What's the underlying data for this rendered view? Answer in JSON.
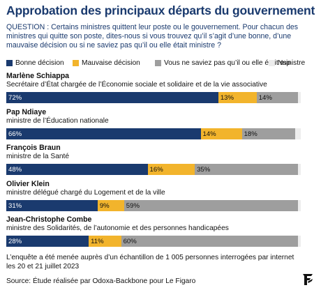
{
  "title": "Approbation des principaux départs du gouvernement",
  "question": "QUESTION : Certains ministres quittent leur poste ou le gouvernement. Pour chacun des ministres qui quitte son poste, dites-nous si vous trouvez qu’il s’agit d’une bonne, d’une mauvaise décision ou si ne saviez pas qu’il ou elle était ministre ?",
  "footnote": "L’enquête a été menée auprès d’un échantillon de 1 005 personnes interrogées par internet les 20 et 21 juillet 2023",
  "source": "Source: Étude réalisée par Odoxa-Backbone pour Le Figaro",
  "logo_icon": "le-figaro-logo-icon",
  "colors": {
    "title": "#1a3a6e",
    "bonne": "#1a3a6e",
    "mauvaise": "#f2b42c",
    "vous_ne_saviez": "#9e9e9e",
    "nsp": "#ededed"
  },
  "chart_data": {
    "type": "bar",
    "orientation": "horizontal",
    "stacked": true,
    "unit": "%",
    "legend_position": "top",
    "xlim": [
      0,
      100
    ],
    "legend": [
      {
        "key": "bonne",
        "label": "Bonne décision"
      },
      {
        "key": "mauvaise",
        "label": "Mauvaise décision"
      },
      {
        "key": "vous_ne_saviez",
        "label": "Vous ne saviez pas qu’il ou elle était ministre"
      },
      {
        "key": "nsp",
        "label": "Nsp"
      }
    ],
    "rows": [
      {
        "name": "Marlène Schiappa",
        "role": "Secrétaire d’État chargée de l’Économie sociale et solidaire et de la vie associative",
        "values": {
          "bonne": 72,
          "mauvaise": 13,
          "vous_ne_saviez": 14,
          "nsp": 1
        },
        "labels": {
          "bonne": "72%",
          "mauvaise": "13%",
          "vous_ne_saviez": "14%"
        }
      },
      {
        "name": "Pap Ndiaye",
        "role": "ministre de l’Éducation nationale",
        "values": {
          "bonne": 66,
          "mauvaise": 14,
          "vous_ne_saviez": 18,
          "nsp": 2
        },
        "labels": {
          "bonne": "66%",
          "mauvaise": "14%",
          "vous_ne_saviez": "18%"
        }
      },
      {
        "name": "François Braun",
        "role": "ministre de la Santé",
        "values": {
          "bonne": 48,
          "mauvaise": 16,
          "vous_ne_saviez": 35,
          "nsp": 1
        },
        "labels": {
          "bonne": "48%",
          "mauvaise": "16%",
          "vous_ne_saviez": "35%"
        }
      },
      {
        "name": "Olivier Klein",
        "role": "ministre délégué chargé du Logement et de la ville",
        "values": {
          "bonne": 31,
          "mauvaise": 9,
          "vous_ne_saviez": 59,
          "nsp": 1
        },
        "labels": {
          "bonne": "31%",
          "mauvaise": "9%",
          "vous_ne_saviez": "59%"
        }
      },
      {
        "name": "Jean-Christophe Combe",
        "role": "ministre des Solidarités, de l’autonomie et des personnes handicapées",
        "values": {
          "bonne": 28,
          "mauvaise": 11,
          "vous_ne_saviez": 60,
          "nsp": 1
        },
        "labels": {
          "bonne": "28%",
          "mauvaise": "11%",
          "vous_ne_saviez": "60%"
        }
      }
    ]
  }
}
